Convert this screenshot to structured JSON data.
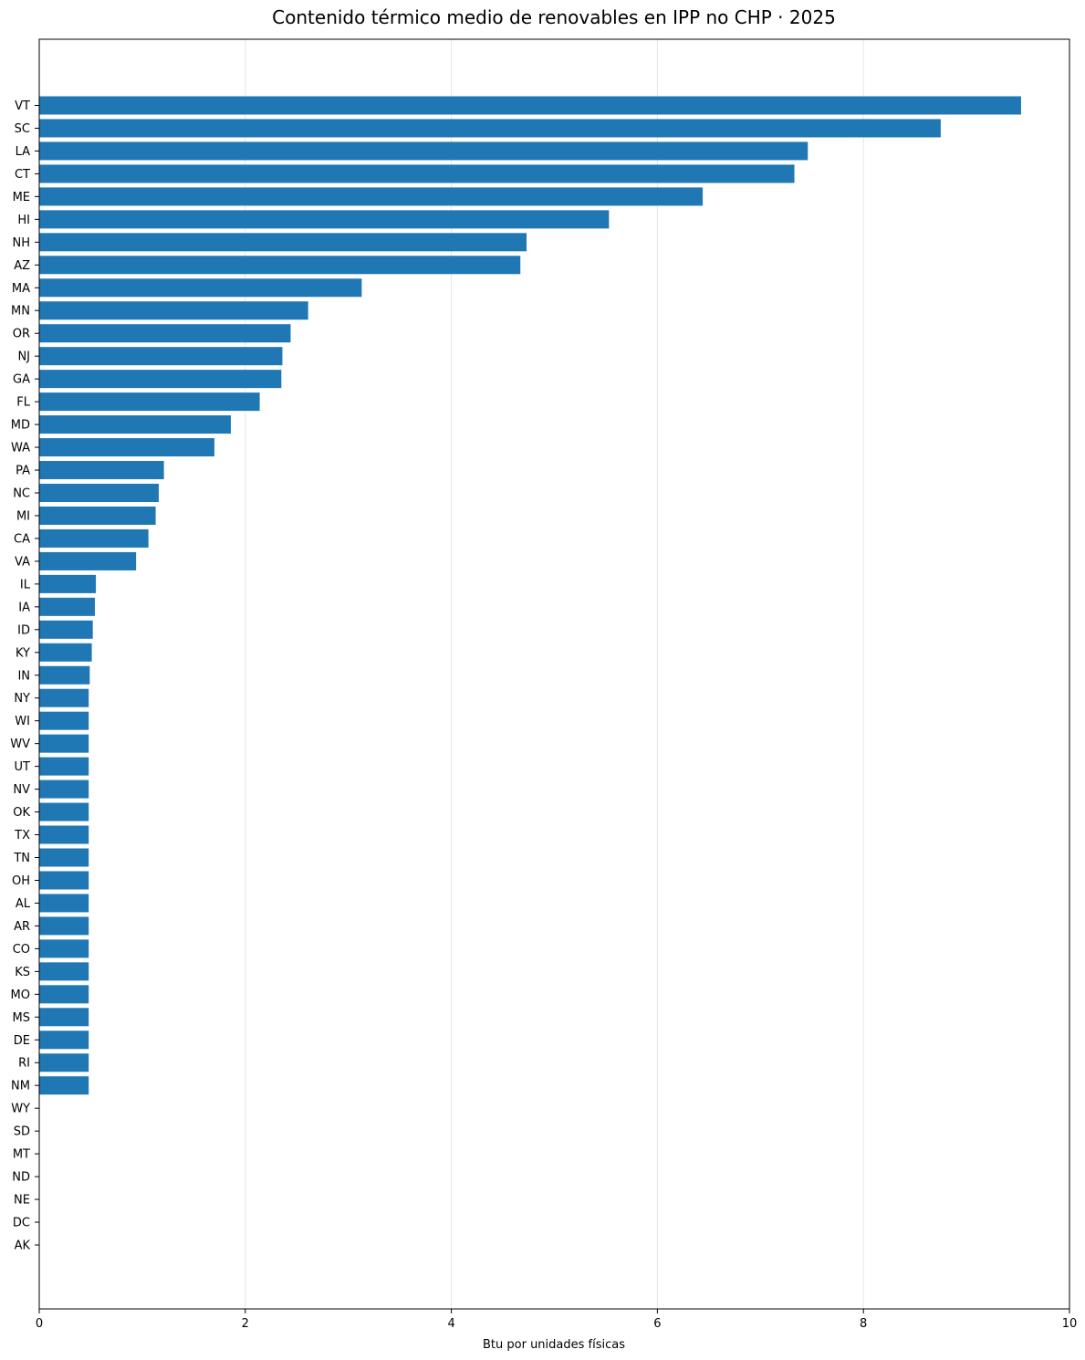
{
  "chart_data": {
    "type": "bar",
    "orientation": "horizontal",
    "title": "Contenido térmico medio de renovables en IPP no CHP · 2025",
    "xlabel": "Btu por unidades físicas",
    "ylabel": "",
    "xlim": [
      0,
      10
    ],
    "xticks": [
      0,
      2,
      4,
      6,
      8,
      10
    ],
    "grid": "vertical",
    "bar_color": "#1f77b4",
    "categories": [
      "VT",
      "SC",
      "LA",
      "CT",
      "ME",
      "HI",
      "NH",
      "AZ",
      "MA",
      "MN",
      "OR",
      "NJ",
      "GA",
      "FL",
      "MD",
      "WA",
      "PA",
      "NC",
      "MI",
      "CA",
      "VA",
      "IL",
      "IA",
      "ID",
      "KY",
      "IN",
      "NY",
      "WI",
      "WV",
      "UT",
      "NV",
      "OK",
      "TX",
      "TN",
      "OH",
      "AL",
      "AR",
      "CO",
      "KS",
      "MO",
      "MS",
      "DE",
      "RI",
      "NM",
      "WY",
      "SD",
      "MT",
      "ND",
      "NE",
      "DC",
      "AK"
    ],
    "values": [
      9.53,
      8.75,
      7.46,
      7.33,
      6.44,
      5.53,
      4.73,
      4.67,
      3.13,
      2.61,
      2.44,
      2.36,
      2.35,
      2.14,
      1.86,
      1.7,
      1.21,
      1.16,
      1.13,
      1.06,
      0.94,
      0.55,
      0.54,
      0.52,
      0.51,
      0.49,
      0.48,
      0.48,
      0.48,
      0.48,
      0.48,
      0.48,
      0.48,
      0.48,
      0.48,
      0.48,
      0.48,
      0.48,
      0.48,
      0.48,
      0.48,
      0.48,
      0.48,
      0.48,
      0,
      0,
      0,
      0,
      0,
      0,
      0
    ]
  }
}
